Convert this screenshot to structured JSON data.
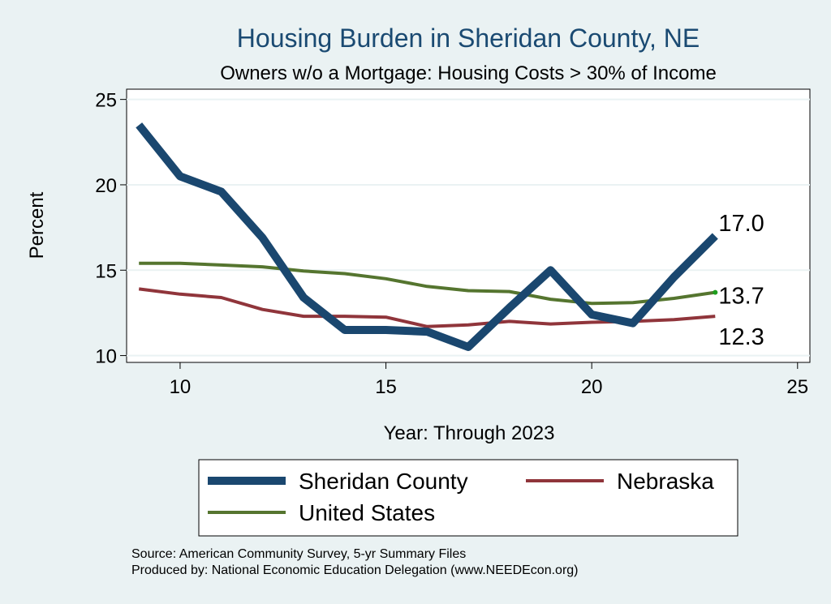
{
  "chart_data": {
    "type": "line",
    "title": "Housing Burden in Sheridan County, NE",
    "subtitle": "Owners w/o a Mortgage: Housing Costs > 30% of Income",
    "xlabel": "Year: Through 2023",
    "ylabel": "Percent",
    "xlim": [
      8.7,
      25.3
    ],
    "ylim": [
      9.6,
      25.6
    ],
    "x_ticks": [
      10,
      15,
      20,
      25
    ],
    "y_ticks": [
      10,
      15,
      20,
      25
    ],
    "x": [
      9,
      10,
      11,
      12,
      13,
      14,
      15,
      16,
      17,
      18,
      19,
      20,
      21,
      22,
      23
    ],
    "series": [
      {
        "name": "Sheridan County",
        "color": "#1a476f",
        "values": [
          23.5,
          20.5,
          19.6,
          16.9,
          13.4,
          11.5,
          11.5,
          11.4,
          10.5,
          12.8,
          15.0,
          12.4,
          11.9,
          14.6,
          17.0
        ],
        "end_label": "17.0"
      },
      {
        "name": "Nebraska",
        "color": "#90353b",
        "values": [
          13.9,
          13.6,
          13.4,
          12.7,
          12.3,
          12.3,
          12.25,
          11.7,
          11.8,
          12.0,
          11.85,
          11.95,
          12.0,
          12.1,
          12.3
        ],
        "end_label": "12.3"
      },
      {
        "name": "United States",
        "color": "#55752f",
        "values": [
          15.4,
          15.4,
          15.3,
          15.2,
          14.95,
          14.8,
          14.5,
          14.05,
          13.8,
          13.75,
          13.3,
          13.05,
          13.1,
          13.35,
          13.7
        ],
        "end_label": "13.7"
      }
    ],
    "source_lines": [
      "Source: American Community Survey, 5-yr Summary Files",
      "Produced by: National Economic Education Delegation (www.NEEDEcon.org)"
    ]
  }
}
